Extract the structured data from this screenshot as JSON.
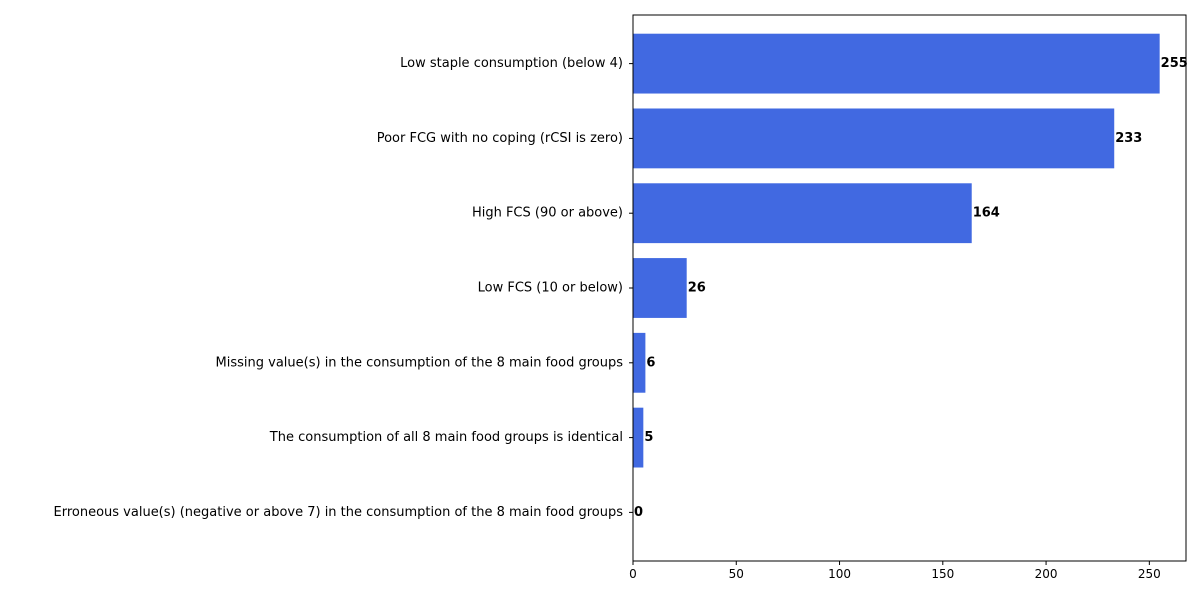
{
  "chart_data": {
    "type": "bar",
    "orientation": "horizontal",
    "title": "",
    "xlabel": "",
    "ylabel": "",
    "categories": [
      "Low staple consumption (below 4)",
      "Poor FCG with no coping (rCSI is zero)",
      "High FCS (90 or above)",
      "Low FCS (10 or below)",
      "Missing value(s) in the consumption of the 8 main food groups",
      "The consumption of all 8 main food groups is identical",
      "Erroneous value(s) (negative or above 7) in the consumption of the 8 main food groups"
    ],
    "values": [
      255,
      233,
      164,
      26,
      6,
      5,
      0
    ],
    "xlim": [
      0,
      267.75
    ],
    "xticks": [
      0,
      50,
      100,
      150,
      200,
      250
    ],
    "grid": false,
    "legend": "none",
    "bar_color": "#4169e1"
  }
}
